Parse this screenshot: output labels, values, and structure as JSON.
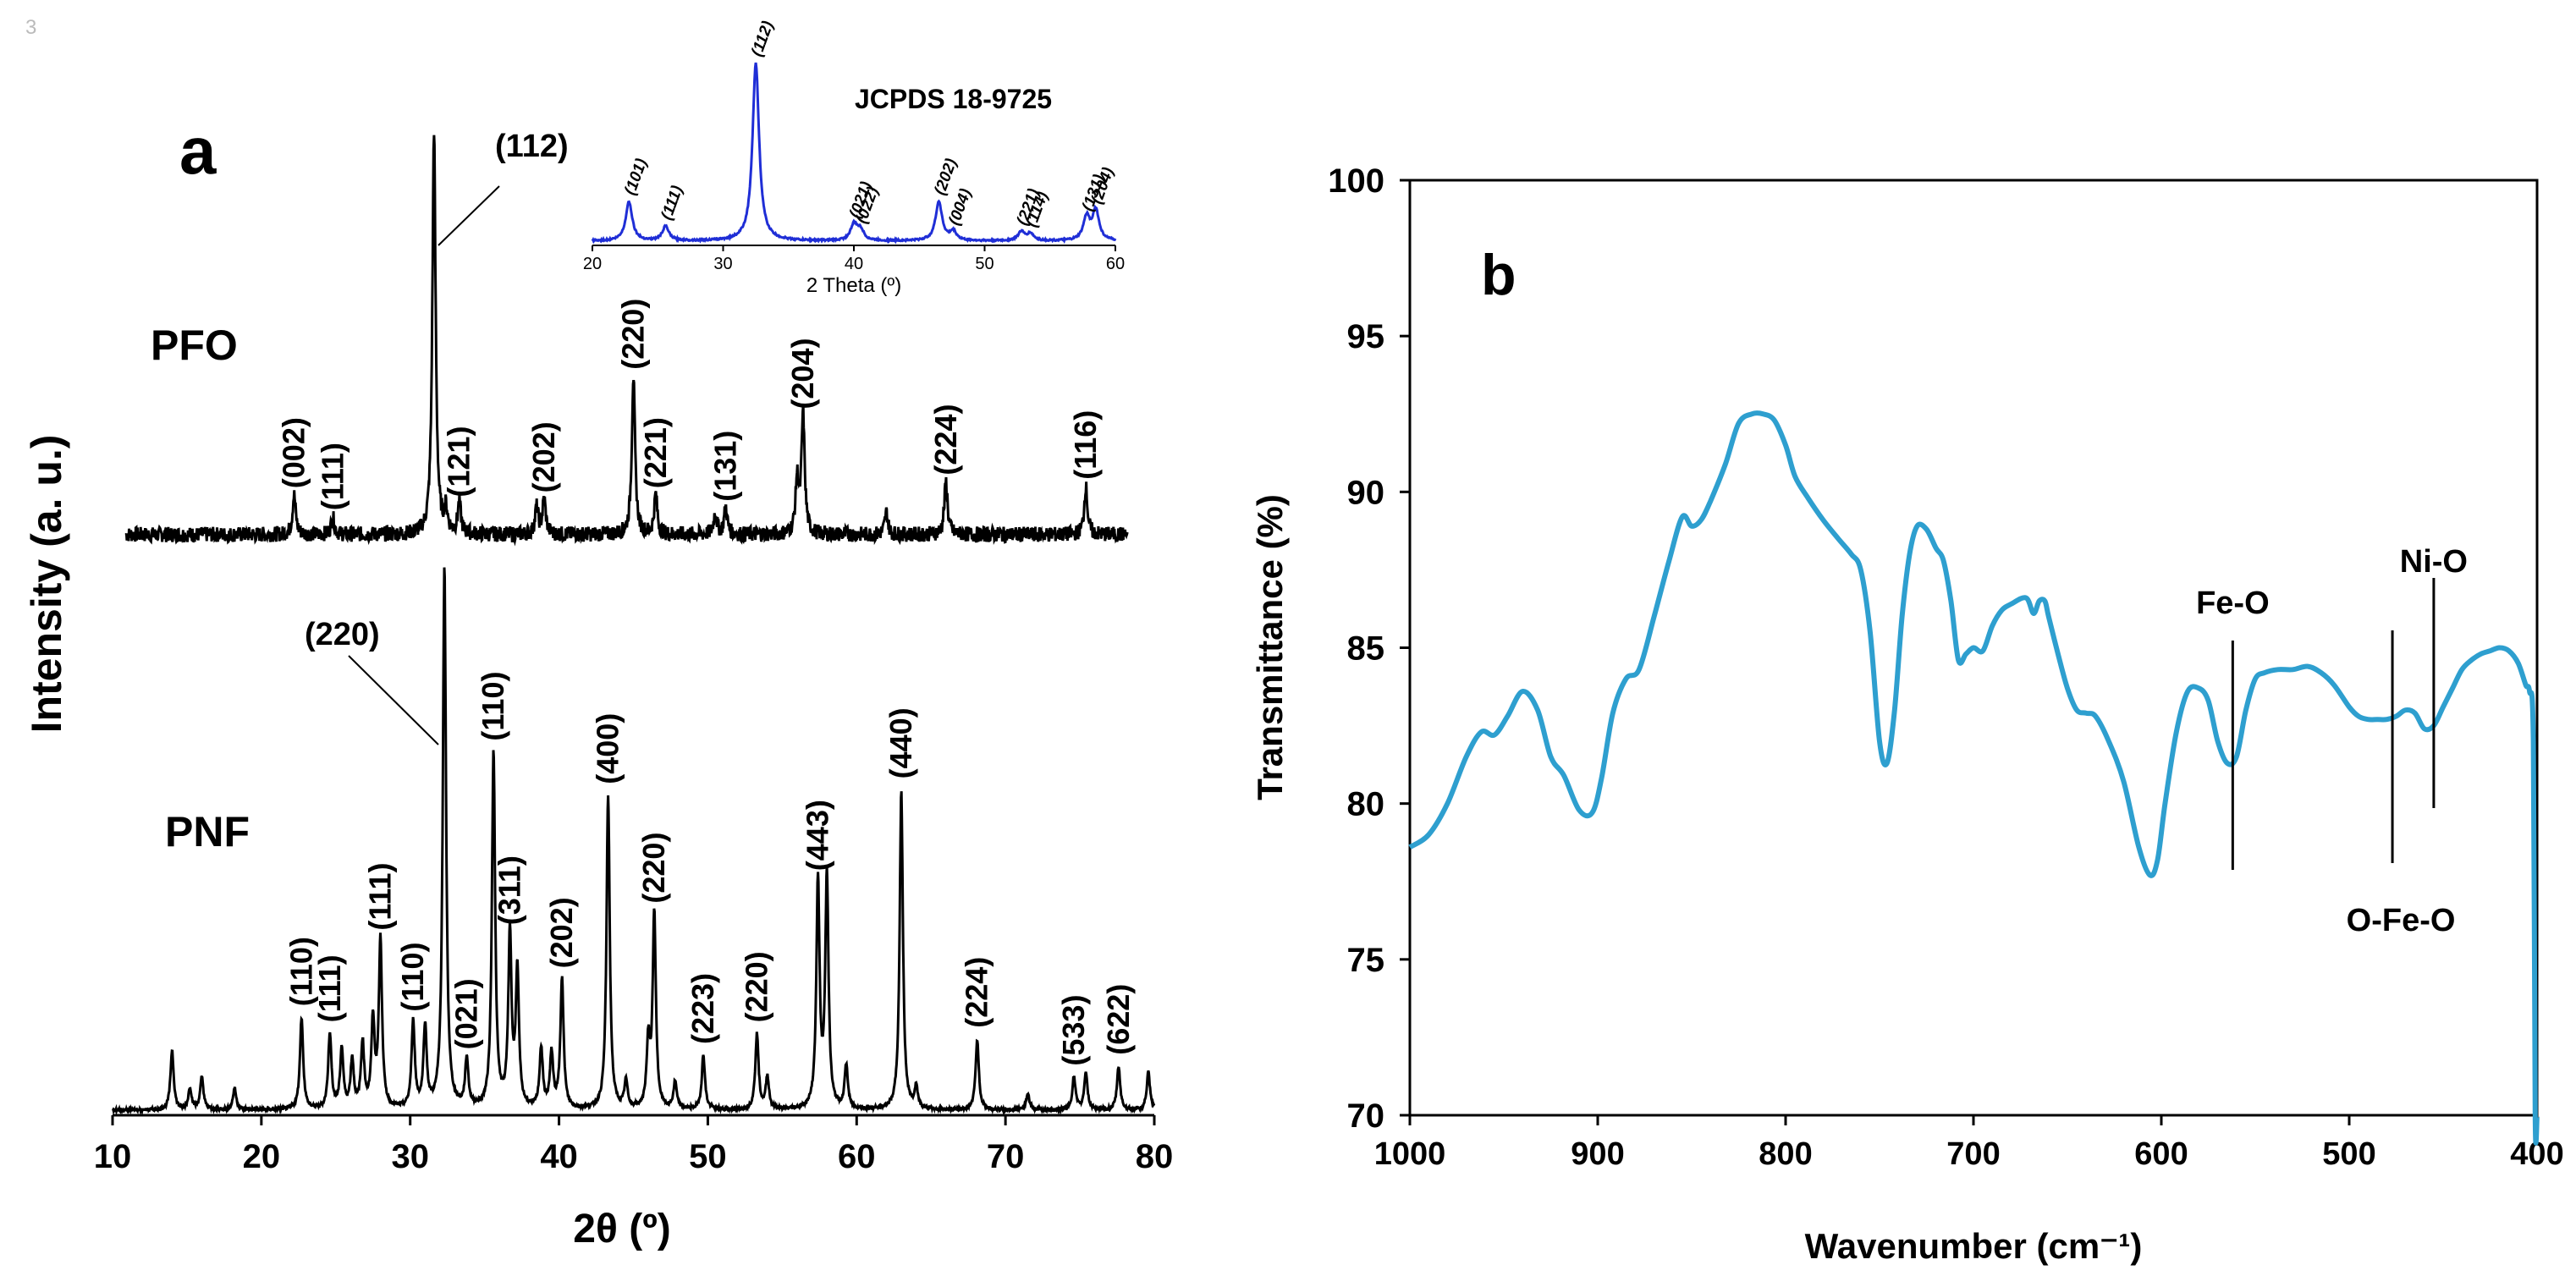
{
  "corner_mark": "3",
  "chart_data": [
    {
      "type": "line",
      "panel_label": "a",
      "xlabel": "2θ (º)",
      "ylabel": "Intensity (a. u.)",
      "xlim": [
        10,
        80
      ],
      "xticks": [
        "10",
        "20",
        "30",
        "40",
        "50",
        "60",
        "70",
        "80"
      ],
      "grid": false,
      "series": [
        {
          "name": "PFO",
          "baseline_noise": true,
          "peaks": [
            {
              "x": 22.2,
              "h": 0.09,
              "label": "(002)"
            },
            {
              "x": 24.8,
              "h": 0.04,
              "label": "(111)"
            },
            {
              "x": 31.6,
              "h": 0.92,
              "label": "(112)"
            },
            {
              "x": 32.4,
              "h": 0.05
            },
            {
              "x": 33.3,
              "h": 0.07,
              "label": "(121)"
            },
            {
              "x": 38.5,
              "h": 0.06
            },
            {
              "x": 39.0,
              "h": 0.08,
              "label": "(202)"
            },
            {
              "x": 45.0,
              "h": 0.36,
              "label": "(220)"
            },
            {
              "x": 46.5,
              "h": 0.09,
              "label": "(221)"
            },
            {
              "x": 50.5,
              "h": 0.05
            },
            {
              "x": 51.2,
              "h": 0.06,
              "label": "(131)"
            },
            {
              "x": 56.0,
              "h": 0.12
            },
            {
              "x": 56.4,
              "h": 0.27,
              "label": "(204)"
            },
            {
              "x": 62.0,
              "h": 0.05
            },
            {
              "x": 66.0,
              "h": 0.12,
              "label": "(224)"
            },
            {
              "x": 75.4,
              "h": 0.11,
              "label": "(116)"
            }
          ]
        },
        {
          "name": "PNF",
          "peaks": [
            {
              "x": 14.0,
              "h": 0.11
            },
            {
              "x": 15.2,
              "h": 0.04
            },
            {
              "x": 16.0,
              "h": 0.06
            },
            {
              "x": 18.2,
              "h": 0.04
            },
            {
              "x": 22.7,
              "h": 0.17,
              "label": "(110)"
            },
            {
              "x": 24.6,
              "h": 0.14,
              "label": "(111)"
            },
            {
              "x": 25.4,
              "h": 0.11
            },
            {
              "x": 26.1,
              "h": 0.09
            },
            {
              "x": 26.8,
              "h": 0.12
            },
            {
              "x": 27.5,
              "h": 0.16
            },
            {
              "x": 28.0,
              "h": 0.31,
              "label": "(111)"
            },
            {
              "x": 30.2,
              "h": 0.16,
              "label": "(110)"
            },
            {
              "x": 31.0,
              "h": 0.15
            },
            {
              "x": 32.3,
              "h": 1.0,
              "label": "(220)"
            },
            {
              "x": 33.8,
              "h": 0.09,
              "label": "(021)"
            },
            {
              "x": 35.6,
              "h": 0.66,
              "label": "(110)"
            },
            {
              "x": 36.7,
              "h": 0.32,
              "label": "(311)"
            },
            {
              "x": 37.2,
              "h": 0.25
            },
            {
              "x": 38.8,
              "h": 0.11
            },
            {
              "x": 39.5,
              "h": 0.1
            },
            {
              "x": 40.2,
              "h": 0.24,
              "label": "(202)"
            },
            {
              "x": 43.3,
              "h": 0.58,
              "label": "(400)"
            },
            {
              "x": 44.5,
              "h": 0.05
            },
            {
              "x": 46.0,
              "h": 0.12
            },
            {
              "x": 46.4,
              "h": 0.36,
              "label": "(220)"
            },
            {
              "x": 47.8,
              "h": 0.05
            },
            {
              "x": 49.7,
              "h": 0.1,
              "label": "(223)"
            },
            {
              "x": 53.3,
              "h": 0.14,
              "label": "(220)"
            },
            {
              "x": 54.0,
              "h": 0.06
            },
            {
              "x": 57.4,
              "h": 0.42,
              "label": "(443)"
            },
            {
              "x": 58.0,
              "h": 0.43
            },
            {
              "x": 59.3,
              "h": 0.08
            },
            {
              "x": 63.0,
              "h": 0.59,
              "label": "(440)"
            },
            {
              "x": 64.0,
              "h": 0.04
            },
            {
              "x": 68.1,
              "h": 0.13,
              "label": "(224)"
            },
            {
              "x": 71.5,
              "h": 0.03
            },
            {
              "x": 74.6,
              "h": 0.06,
              "label": "(533)"
            },
            {
              "x": 75.4,
              "h": 0.07
            },
            {
              "x": 77.6,
              "h": 0.08,
              "label": "(622)"
            },
            {
              "x": 79.6,
              "h": 0.07
            }
          ]
        }
      ],
      "callouts": [
        {
          "text": "(112)",
          "series": "PFO"
        },
        {
          "text": "(220)",
          "series": "PNF"
        }
      ],
      "inset": {
        "type": "line",
        "title": "JCPDS 18-9725",
        "xlabel": "2 Theta (º)",
        "xlim": [
          20,
          60
        ],
        "xticks": [
          "20",
          "30",
          "40",
          "50",
          "60"
        ],
        "color": "#1f2ed6",
        "peaks": [
          {
            "x": 22.8,
            "h": 0.22,
            "label": "(101)"
          },
          {
            "x": 25.6,
            "h": 0.08,
            "label": "(111)"
          },
          {
            "x": 32.5,
            "h": 1.0,
            "label": "(112)"
          },
          {
            "x": 40.0,
            "h": 0.09,
            "label": "(021)"
          },
          {
            "x": 40.5,
            "h": 0.06,
            "label": "(022)"
          },
          {
            "x": 46.5,
            "h": 0.22,
            "label": "(202)"
          },
          {
            "x": 47.6,
            "h": 0.05,
            "label": "(004)"
          },
          {
            "x": 52.8,
            "h": 0.05,
            "label": "(221)"
          },
          {
            "x": 53.5,
            "h": 0.04,
            "label": "(114)"
          },
          {
            "x": 57.8,
            "h": 0.13,
            "label": "(131)"
          },
          {
            "x": 58.5,
            "h": 0.17,
            "label": "(204)"
          }
        ]
      }
    },
    {
      "type": "line",
      "panel_label": "b",
      "xlabel": "Wavenumber (cm⁻¹)",
      "ylabel": "Transmittance (%)",
      "xlim": [
        1000,
        400
      ],
      "x_reversed": true,
      "ylim": [
        70,
        100
      ],
      "xticks": [
        "1000",
        "900",
        "800",
        "700",
        "600",
        "500",
        "400"
      ],
      "yticks": [
        "70",
        "75",
        "80",
        "85",
        "90",
        "95",
        "100"
      ],
      "grid": false,
      "color": "#2e9fcf",
      "series": [
        {
          "name": "",
          "x": [
            1000,
            990,
            980,
            970,
            962,
            955,
            948,
            940,
            932,
            925,
            918,
            910,
            903,
            898,
            892,
            885,
            878,
            870,
            862,
            855,
            850,
            845,
            840,
            832,
            825,
            818,
            812,
            806,
            800,
            795,
            788,
            780,
            772,
            765,
            760,
            755,
            750,
            746,
            742,
            738,
            734,
            730,
            725,
            720,
            716,
            712,
            708,
            704,
            700,
            695,
            690,
            685,
            680,
            672,
            668,
            665,
            662,
            660,
            655,
            650,
            645,
            640,
            635,
            628,
            620,
            612,
            606,
            602,
            598,
            592,
            586,
            580,
            575,
            570,
            565,
            560,
            555,
            550,
            545,
            538,
            530,
            522,
            515,
            508,
            500,
            495,
            490,
            485,
            480,
            475,
            470,
            465,
            460,
            455,
            450,
            445,
            440,
            435,
            430,
            425,
            420,
            415,
            410,
            406,
            404,
            402,
            401,
            400
          ],
          "y": [
            78.6,
            79.0,
            80.0,
            81.5,
            82.3,
            82.2,
            82.8,
            83.6,
            83.0,
            81.5,
            80.9,
            79.8,
            79.7,
            80.8,
            82.9,
            84.0,
            84.3,
            86.0,
            87.8,
            89.2,
            88.9,
            89.1,
            89.7,
            90.9,
            92.2,
            92.5,
            92.5,
            92.3,
            91.5,
            90.5,
            89.8,
            89.1,
            88.5,
            88.0,
            87.5,
            85.5,
            82.0,
            81.3,
            83.0,
            86.0,
            88.0,
            88.9,
            88.8,
            88.2,
            87.8,
            86.5,
            84.6,
            84.8,
            85.0,
            84.9,
            85.7,
            86.2,
            86.4,
            86.6,
            86.1,
            86.5,
            86.5,
            86.0,
            84.8,
            83.7,
            83.0,
            82.9,
            82.8,
            82.0,
            80.7,
            78.6,
            77.7,
            78.2,
            80.0,
            82.3,
            83.6,
            83.7,
            83.3,
            82.0,
            81.3,
            81.5,
            83.0,
            84.0,
            84.2,
            84.3,
            84.3,
            84.4,
            84.2,
            83.8,
            83.1,
            82.8,
            82.7,
            82.7,
            82.7,
            82.8,
            83.0,
            82.9,
            82.4,
            82.5,
            83.1,
            83.7,
            84.3,
            84.6,
            84.8,
            84.9,
            85.0,
            84.9,
            84.5,
            83.8,
            83.6,
            82.0,
            70.0,
            70.0
          ]
        }
      ],
      "annotations": [
        {
          "text": "Fe-O",
          "x": 562
        },
        {
          "text": "O-Fe-O",
          "x": 477
        },
        {
          "text": "Ni-O",
          "x": 455
        }
      ]
    }
  ]
}
